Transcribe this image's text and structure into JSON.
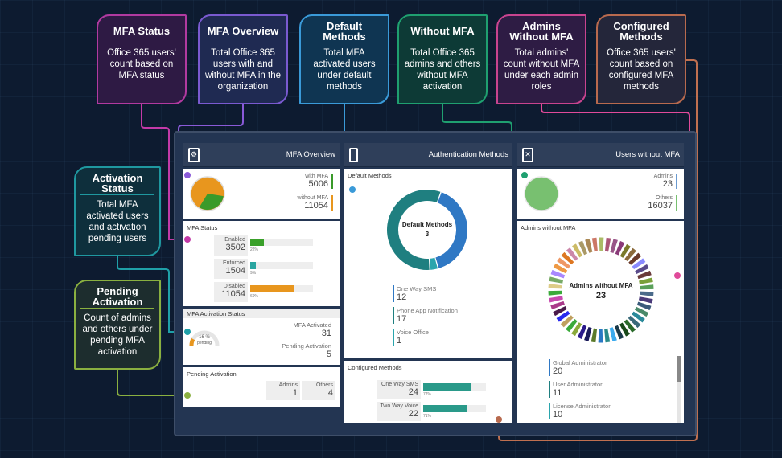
{
  "callouts": [
    {
      "title": "MFA Status",
      "text": "Office 365 users' count based on MFA status",
      "color": "#b13aa0",
      "fill": "#2e1a44"
    },
    {
      "title": "MFA Overview",
      "text": "Total Office 365 users with and without MFA in the organization",
      "color": "#7a5ad0",
      "fill": "#1f2a52"
    },
    {
      "title": "Default Methods",
      "text": "Total MFA activated users under default methods",
      "color": "#3a9ad8",
      "fill": "#0f3552"
    },
    {
      "title": "Without MFA",
      "text": "Total Office 365 admins and others without MFA activation",
      "color": "#1fa070",
      "fill": "#0d3a36"
    },
    {
      "title": "Admins Without MFA",
      "text": "Total admins' count without MFA under each admin roles",
      "color": "#c8448f",
      "fill": "#2e1c44"
    },
    {
      "title": "Configured Methods",
      "text": "Office 365 users' count based on configured MFA methods",
      "color": "#b86a4e",
      "fill": "#24263a"
    },
    {
      "title": "Activation Status",
      "text": "Total MFA activated users and activation pending users",
      "color": "#1f98a0",
      "fill": "#0e2f3c"
    },
    {
      "title": "Pending Activation",
      "text": "Count of admins and others under pending MFA activation",
      "color": "#8ab040",
      "fill": "#1d2d2e"
    }
  ],
  "mfa_overview": {
    "header": "MFA Overview",
    "with_label": "with MFA",
    "with_value": "5006",
    "without_label": "without MFA",
    "without_value": "11054",
    "with_color": "#3a9a2a",
    "without_color": "#e8961e"
  },
  "mfa_status": {
    "title": "MFA Status",
    "rows": [
      {
        "label": "Enabled",
        "value": "3502",
        "pct": "22%",
        "fraction": 0.22,
        "color": "#3aa02a"
      },
      {
        "label": "Enforced",
        "value": "1504",
        "pct": "9%",
        "fraction": 0.09,
        "color": "#2aa5a0"
      },
      {
        "label": "Disabled",
        "value": "11054",
        "pct": "69%",
        "fraction": 0.69,
        "color": "#e8961e"
      }
    ]
  },
  "activation_status": {
    "title": "MFA Activation Status",
    "gauge_pct": "16 %",
    "gauge_label": "pending",
    "gauge_fraction": 0.16,
    "activated_label": "MFA Activated",
    "activated_value": "31",
    "pending_label": "Pending Activation",
    "pending_value": "5"
  },
  "pending_activation": {
    "title": "Pending Activation",
    "admins_label": "Admins",
    "admins_value": "1",
    "others_label": "Others",
    "others_value": "4"
  },
  "auth": {
    "header": "Authentication Methods",
    "default_title": "Default Methods",
    "donut_label": "Default Methods",
    "donut_value": "3",
    "methods": [
      {
        "label": "One Way SMS",
        "value": "12",
        "color": "#2f78c4"
      },
      {
        "label": "Phone App Notification",
        "value": "17",
        "color": "#1f7f80"
      },
      {
        "label": "Voice Office",
        "value": "1",
        "color": "#2aa5ad"
      }
    ],
    "configured_title": "Configured Methods",
    "configured": [
      {
        "label": "One Way SMS",
        "value": "24",
        "pct": "77%",
        "fraction": 0.77
      },
      {
        "label": "Two Way Voice",
        "value": "22",
        "pct": "71%",
        "fraction": 0.71
      }
    ],
    "bar_color": "#2a9a8a"
  },
  "users_without": {
    "header": "Users without MFA",
    "admins_label": "Admins",
    "admins_value": "23",
    "others_label": "Others",
    "others_value": "16037",
    "pie_color": "#78c070",
    "admins_title": "Admins without MFA",
    "donut_label": "Admins without MFA",
    "donut_value": "23",
    "roles": [
      {
        "label": "Global Administrator",
        "value": "20",
        "color": "#2f78c4"
      },
      {
        "label": "User Administrator",
        "value": "11",
        "color": "#1f7f80"
      },
      {
        "label": "License Administrator",
        "value": "10",
        "color": "#2aa5ad"
      }
    ],
    "palette": [
      "#8a3a78",
      "#7a7a2a",
      "#8a6a3a",
      "#6a3a2a",
      "#8a8aff",
      "#5a4a8a",
      "#6a3a3a",
      "#7aa03a",
      "#5aa05a",
      "#4a6a8a",
      "#4a3a7a",
      "#3a5a7a",
      "#4a8a6a",
      "#2a8a9a",
      "#3a6a7a",
      "#2a6a2a",
      "#1a4a1a",
      "#1a3a4a",
      "#3aaaee",
      "#2a8a8a",
      "#2a78c4",
      "#5a7a2a",
      "#1a1a5a",
      "#2a1a8a",
      "#8aaa3a",
      "#3aaa3a",
      "#c0a060",
      "#2a2aee",
      "#4a1a4a",
      "#aa3a8a",
      "#c84ab0",
      "#3aaa3a",
      "#ddcc88",
      "#77aa66",
      "#aa88ff",
      "#ee9944",
      "#ee9966",
      "#dd7722",
      "#cc88aa",
      "#ccbb66",
      "#aa9966",
      "#aa8855",
      "#cc7766",
      "#aabb66",
      "#aa5577",
      "#995588"
    ]
  }
}
